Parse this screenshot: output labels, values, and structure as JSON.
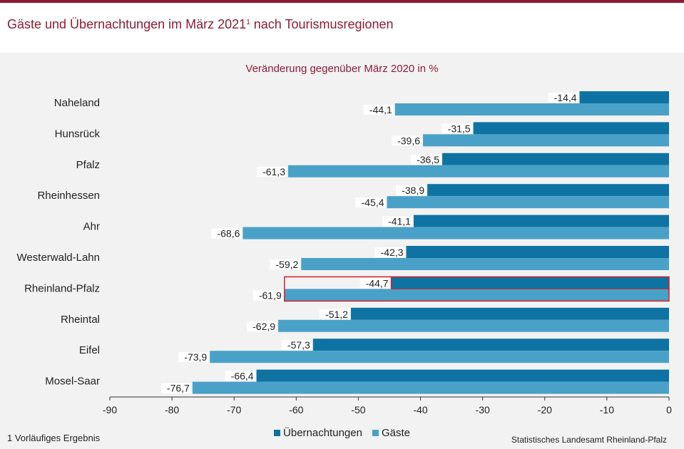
{
  "chart_data": {
    "type": "bar",
    "orientation": "horizontal",
    "title": "Gäste und Übernachtungen im März 2021",
    "title_footnote_mark": "1",
    "title_suffix": "nach Tourismusregionen",
    "subtitle": "Veränderung  gegenüber März 2020 in %",
    "categories": [
      "Naheland",
      "Hunsrück",
      "Pfalz",
      "Rheinhessen",
      "Ahr",
      "Westerwald-Lahn",
      "Rheinland-Pfalz",
      "Rheintal",
      "Eifel",
      "Mosel-Saar"
    ],
    "series": [
      {
        "name": "Übernachtungen",
        "color": "#0e73a3",
        "values": [
          -14.4,
          -31.5,
          -36.5,
          -38.9,
          -41.1,
          -42.3,
          -44.7,
          -51.2,
          -57.3,
          -66.4
        ]
      },
      {
        "name": "Gäste",
        "color": "#4aa1c8",
        "values": [
          -44.1,
          -39.6,
          -61.3,
          -45.4,
          -68.6,
          -59.2,
          -61.9,
          -62.9,
          -73.9,
          -76.7
        ]
      }
    ],
    "value_labels": {
      "Übernachtungen": [
        "-14,4",
        "-31,5",
        "-36,5",
        "-38,9",
        "-41,1",
        "-42,3",
        "-44,7",
        "-51,2",
        "-57,3",
        "-66,4"
      ],
      "Gäste": [
        "-44,1",
        "-39,6",
        "-61,3",
        "-45,4",
        "-68,6",
        "-59,2",
        "-61,9",
        "-62,9",
        "-73,9",
        "-76,7"
      ]
    },
    "highlight_category": "Rheinland-Pfalz",
    "highlight_color": "#d42027",
    "xlim": [
      -90,
      0
    ],
    "xticks": [
      -90,
      -80,
      -70,
      -60,
      -50,
      -40,
      -30,
      -20,
      -10,
      0
    ],
    "legend_position": "bottom"
  },
  "footnote": "1 Vorläufiges Ergebnis",
  "source": "Statistisches Landesamt  Rheinland-Pfalz"
}
